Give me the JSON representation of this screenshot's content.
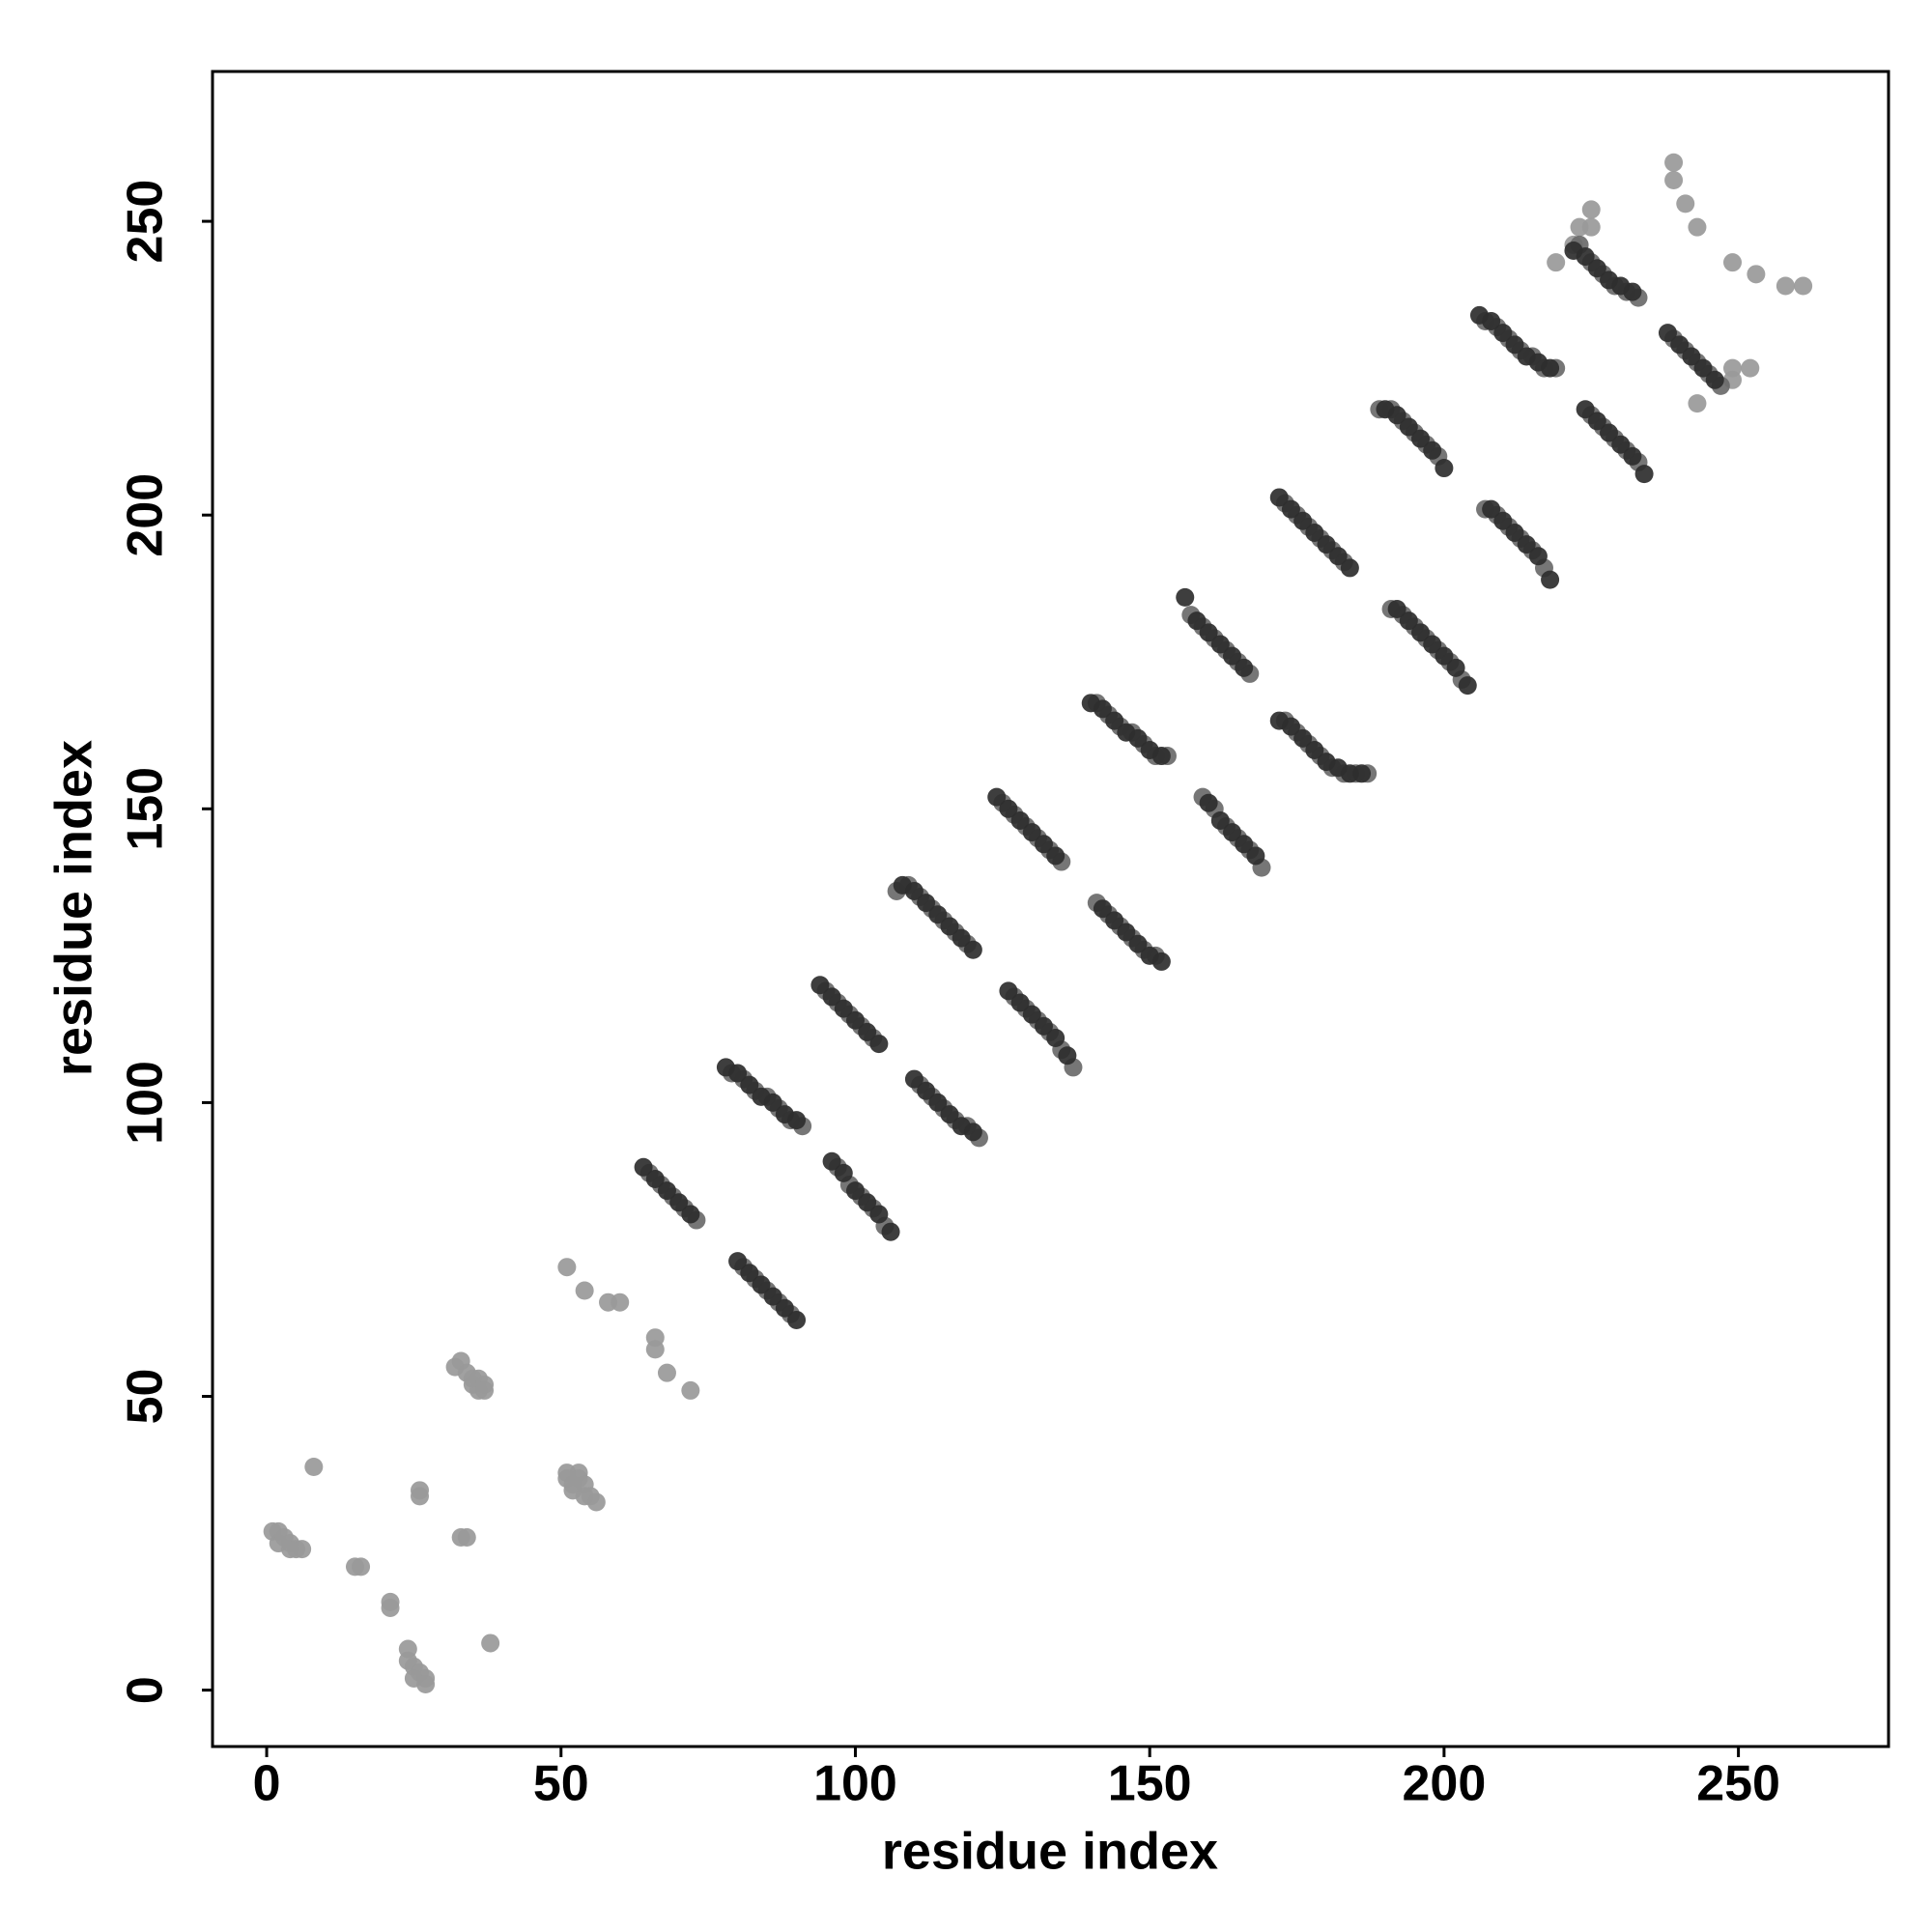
{
  "chart_data": {
    "type": "scatter",
    "xlabel": "residue index",
    "ylabel": "residue index",
    "xlim": [
      -9.2,
      275.5
    ],
    "ylim": [
      -9.6,
      275.5
    ],
    "xticks": [
      0,
      50,
      100,
      150,
      200,
      250
    ],
    "yticks": [
      0,
      50,
      100,
      150,
      200,
      250
    ],
    "grid": false,
    "series": [
      {
        "color": "#999999",
        "x": [
          1,
          2,
          2,
          3,
          4,
          4,
          5,
          6,
          8,
          15,
          16,
          21,
          21,
          24,
          24,
          25,
          25,
          26,
          26,
          26,
          27,
          27,
          32,
          33,
          33,
          34,
          34,
          35,
          35,
          36,
          36,
          37,
          37,
          38,
          51,
          51,
          51,
          52,
          52,
          53,
          53,
          54,
          54,
          55,
          56,
          54,
          58,
          60,
          66,
          66,
          68,
          72,
          219,
          222,
          223,
          225,
          225,
          239,
          239,
          241,
          243,
          249,
          253,
          258,
          261,
          243,
          249,
          249,
          252
        ],
        "y": [
          27,
          27,
          25,
          26,
          25,
          24,
          24,
          24,
          38,
          21,
          21,
          15,
          14,
          7,
          5,
          4,
          2,
          3,
          33,
          34,
          2,
          1,
          55,
          56,
          26,
          54,
          26,
          53,
          52,
          53,
          51,
          52,
          51,
          8,
          72,
          37,
          36,
          35,
          34,
          37,
          36,
          35,
          33,
          33,
          32,
          68,
          66,
          66,
          60,
          58,
          54,
          51,
          243,
          246,
          249,
          249,
          252,
          260,
          257,
          253,
          249,
          243,
          241,
          239,
          239,
          219,
          225,
          223,
          225
        ]
      },
      {
        "color": "#6a6a6a",
        "x": [
          65,
          67,
          69,
          71,
          73,
          81,
          83,
          85,
          87,
          89,
          79,
          81,
          83,
          85,
          87,
          89,
          91,
          97,
          99,
          101,
          103,
          105,
          95,
          97,
          99,
          101,
          103,
          111,
          113,
          115,
          117,
          119,
          121,
          107,
          109,
          111,
          113,
          115,
          117,
          119,
          127,
          129,
          131,
          133,
          135,
          137,
          125,
          127,
          129,
          131,
          133,
          135,
          141,
          143,
          145,
          147,
          149,
          151,
          141,
          143,
          145,
          147,
          149,
          151,
          153,
          157,
          159,
          161,
          163,
          165,
          167,
          159,
          161,
          163,
          165,
          167,
          169,
          173,
          175,
          177,
          179,
          181,
          183,
          185,
          187,
          173,
          175,
          177,
          179,
          181,
          183,
          191,
          193,
          195,
          197,
          199,
          201,
          203,
          189,
          191,
          193,
          195,
          197,
          199,
          207,
          209,
          211,
          213,
          215,
          217,
          207,
          209,
          211,
          213,
          215,
          217,
          219,
          225,
          227,
          229,
          231,
          233,
          223,
          225,
          227,
          229,
          231,
          233,
          239,
          241,
          243,
          245,
          247
        ],
        "y": [
          88,
          86,
          84,
          82,
          80,
          72,
          70,
          68,
          66,
          64,
          105,
          104,
          102,
          101,
          99,
          97,
          96,
          89,
          86,
          84,
          82,
          79,
          119,
          117,
          115,
          113,
          111,
          103,
          101,
          99,
          97,
          96,
          94,
          136,
          137,
          135,
          133,
          131,
          129,
          127,
          118,
          116,
          114,
          112,
          109,
          106,
          151,
          149,
          147,
          145,
          143,
          141,
          134,
          132,
          130,
          128,
          126,
          125,
          168,
          166,
          164,
          163,
          161,
          159,
          159,
          183,
          181,
          179,
          177,
          175,
          173,
          152,
          150,
          147,
          145,
          143,
          140,
          165,
          163,
          161,
          159,
          157,
          156,
          156,
          156,
          202,
          200,
          198,
          196,
          194,
          192,
          184,
          183,
          181,
          179,
          177,
          175,
          172,
          218,
          218,
          216,
          214,
          212,
          210,
          201,
          200,
          198,
          196,
          194,
          191,
          233,
          232,
          230,
          228,
          227,
          225,
          225,
          217,
          215,
          213,
          211,
          209,
          246,
          243,
          241,
          239,
          238,
          237,
          230,
          228,
          226,
          224,
          222
        ]
      },
      {
        "color": "#2e2e2e",
        "x": [
          64,
          66,
          68,
          70,
          72,
          80,
          82,
          84,
          86,
          88,
          90,
          78,
          80,
          82,
          84,
          86,
          88,
          90,
          96,
          98,
          100,
          102,
          104,
          106,
          94,
          96,
          98,
          100,
          102,
          104,
          110,
          112,
          114,
          116,
          118,
          120,
          108,
          110,
          112,
          114,
          116,
          118,
          120,
          126,
          128,
          130,
          132,
          134,
          136,
          124,
          126,
          128,
          130,
          132,
          134,
          142,
          144,
          146,
          148,
          150,
          152,
          140,
          142,
          144,
          146,
          148,
          150,
          152,
          156,
          158,
          160,
          162,
          164,
          166,
          160,
          162,
          164,
          166,
          168,
          172,
          174,
          176,
          178,
          180,
          182,
          184,
          186,
          172,
          174,
          176,
          178,
          180,
          182,
          184,
          192,
          194,
          196,
          198,
          200,
          202,
          204,
          190,
          192,
          194,
          196,
          198,
          200,
          208,
          210,
          212,
          214,
          216,
          218,
          206,
          208,
          210,
          212,
          214,
          216,
          218,
          224,
          226,
          228,
          230,
          232,
          234,
          222,
          224,
          226,
          228,
          230,
          232,
          238,
          240,
          242,
          244,
          246
        ],
        "y": [
          89,
          87,
          85,
          83,
          81,
          73,
          71,
          69,
          67,
          65,
          63,
          106,
          105,
          103,
          101,
          100,
          98,
          97,
          90,
          88,
          85,
          83,
          81,
          78,
          120,
          118,
          116,
          114,
          112,
          110,
          104,
          102,
          100,
          98,
          96,
          95,
          137,
          136,
          134,
          132,
          130,
          128,
          126,
          119,
          117,
          115,
          113,
          111,
          108,
          152,
          150,
          148,
          146,
          144,
          142,
          133,
          131,
          129,
          127,
          125,
          124,
          168,
          167,
          165,
          163,
          162,
          160,
          159,
          186,
          182,
          180,
          178,
          176,
          174,
          151,
          148,
          146,
          144,
          142,
          165,
          164,
          162,
          160,
          158,
          157,
          156,
          156,
          203,
          201,
          199,
          197,
          195,
          193,
          191,
          184,
          182,
          180,
          178,
          176,
          174,
          171,
          218,
          217,
          215,
          213,
          211,
          208,
          201,
          199,
          197,
          195,
          193,
          189,
          234,
          233,
          231,
          229,
          227,
          226,
          225,
          218,
          216,
          214,
          212,
          210,
          207,
          245,
          244,
          242,
          240,
          239,
          238,
          231,
          229,
          227,
          225,
          223
        ]
      }
    ]
  }
}
